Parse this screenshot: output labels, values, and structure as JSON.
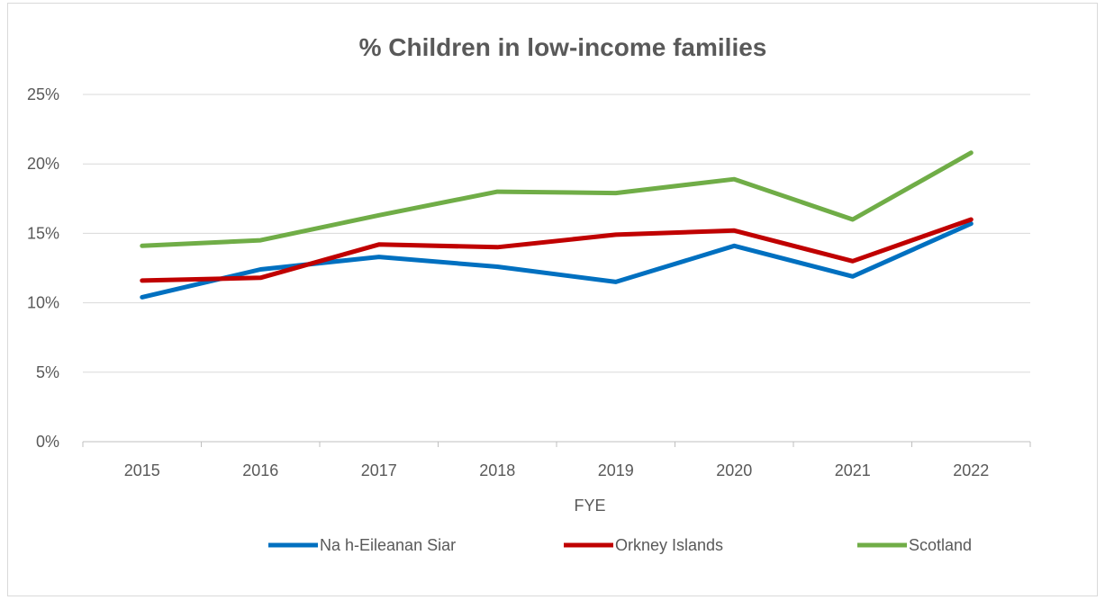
{
  "chart_data": {
    "type": "line",
    "title": "% Children in low-income families",
    "xlabel": "FYE",
    "ylabel": "",
    "categories": [
      "2015",
      "2016",
      "2017",
      "2018",
      "2019",
      "2020",
      "2021",
      "2022"
    ],
    "y_ticks": [
      "0%",
      "5%",
      "10%",
      "15%",
      "20%",
      "25%"
    ],
    "ylim": [
      0,
      25
    ],
    "grid": true,
    "legend_position": "bottom",
    "series": [
      {
        "name": "Na h-Eileanan Siar",
        "color": "#0070c0",
        "values": [
          10.4,
          12.4,
          13.3,
          12.6,
          11.5,
          14.1,
          11.9,
          15.7
        ]
      },
      {
        "name": "Orkney Islands",
        "color": "#c00000",
        "values": [
          11.6,
          11.8,
          14.2,
          14.0,
          14.9,
          15.2,
          13.0,
          16.0
        ]
      },
      {
        "name": "Scotland",
        "color": "#70ad47",
        "values": [
          14.1,
          14.5,
          16.3,
          18.0,
          17.9,
          18.9,
          16.0,
          20.8
        ]
      }
    ]
  }
}
